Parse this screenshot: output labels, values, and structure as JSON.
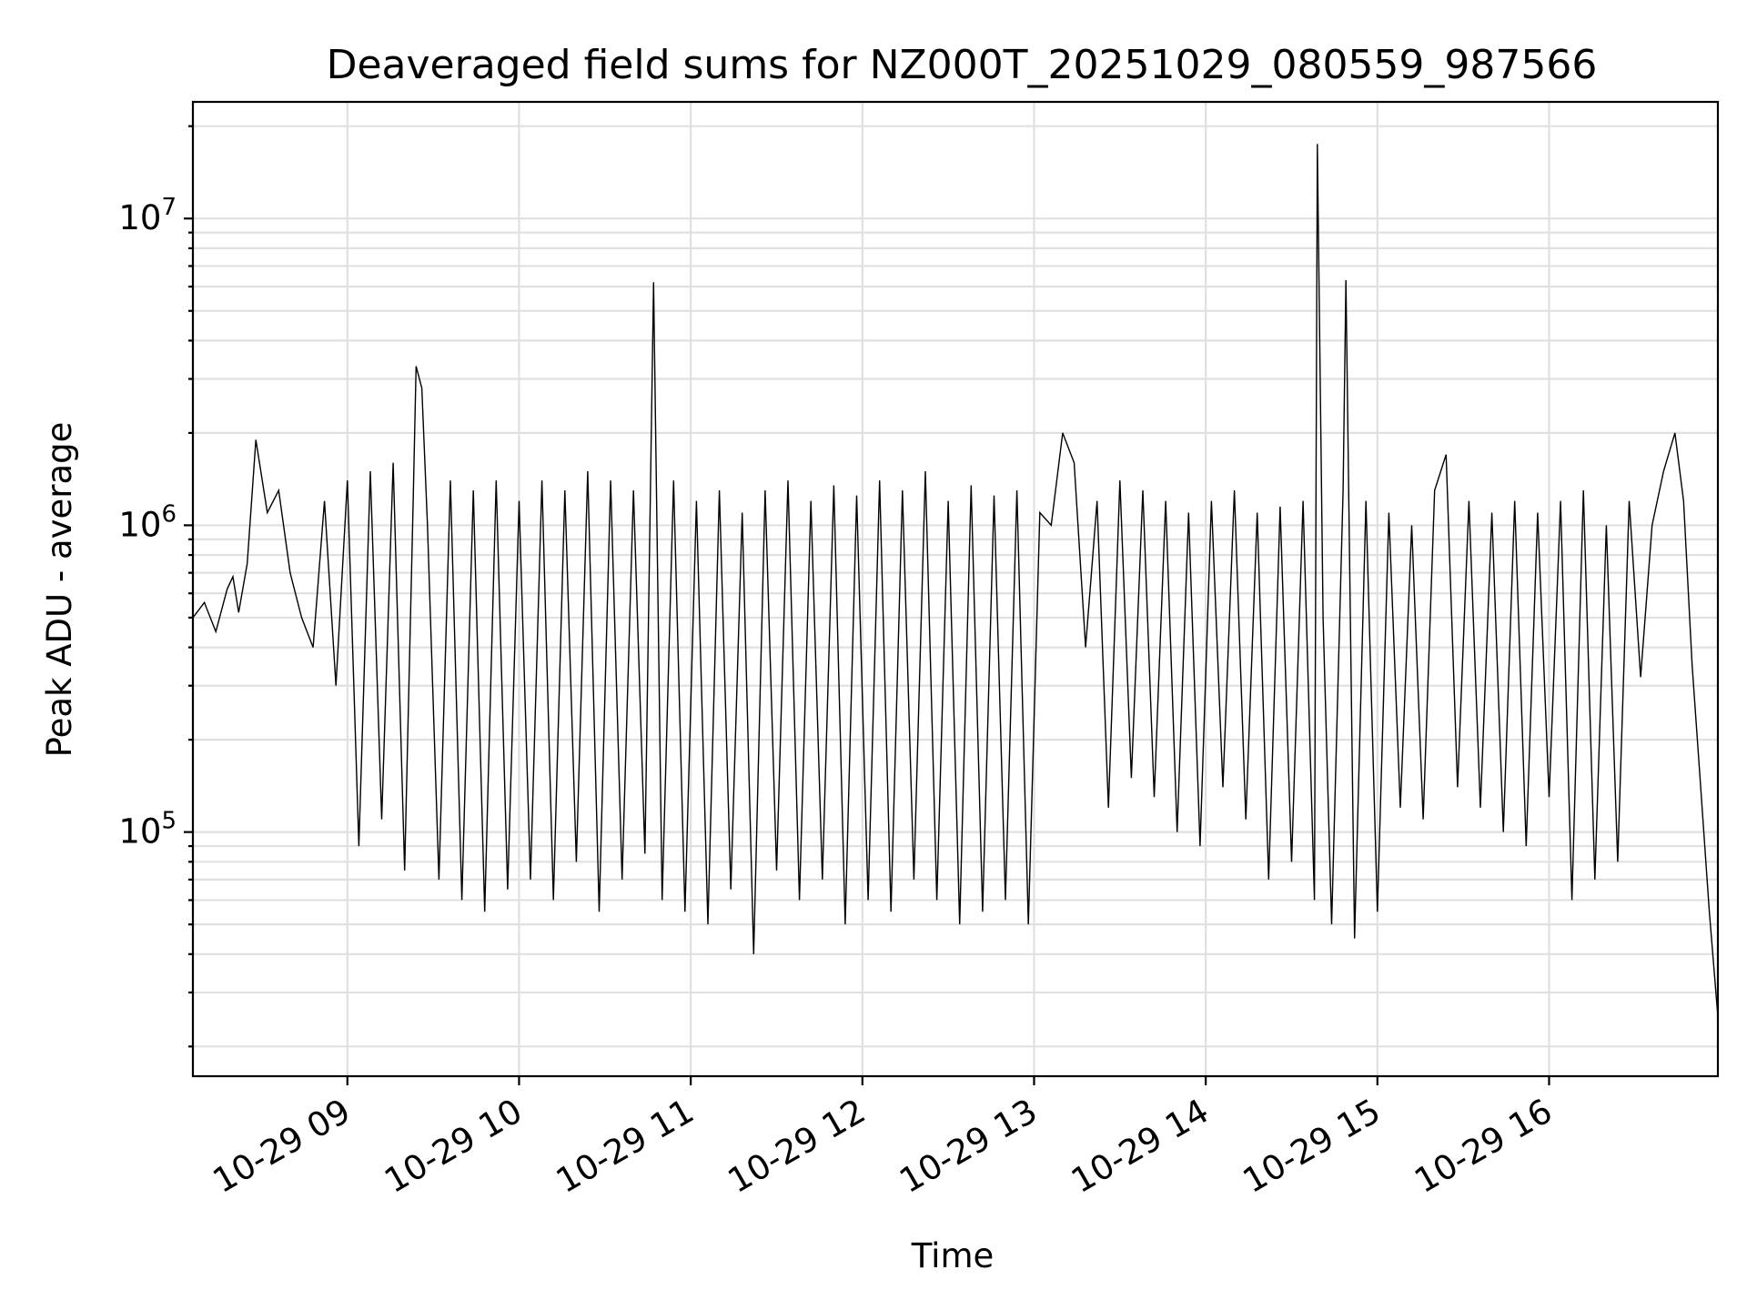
{
  "chart_data": {
    "type": "line",
    "title": "Deaveraged field sums for NZ000T_20251029_080559_987566",
    "xlabel": "Time",
    "ylabel": "Peak ADU - average",
    "yscale": "log",
    "xlim": [
      "2025-10-29 08:06",
      "2025-10-29 16:59"
    ],
    "ylim": [
      16000,
      24000000
    ],
    "grid": true,
    "x_ticks": [
      {
        "value": "2025-10-29 09:00",
        "label": "10-29 09"
      },
      {
        "value": "2025-10-29 10:00",
        "label": "10-29 10"
      },
      {
        "value": "2025-10-29 11:00",
        "label": "10-29 11"
      },
      {
        "value": "2025-10-29 12:00",
        "label": "10-29 12"
      },
      {
        "value": "2025-10-29 13:00",
        "label": "10-29 13"
      },
      {
        "value": "2025-10-29 14:00",
        "label": "10-29 14"
      },
      {
        "value": "2025-10-29 15:00",
        "label": "10-29 15"
      },
      {
        "value": "2025-10-29 16:00",
        "label": "10-29 16"
      }
    ],
    "y_ticks": [
      {
        "value": 100000,
        "base": "10",
        "exp": "5"
      },
      {
        "value": 1000000,
        "base": "10",
        "exp": "6"
      },
      {
        "value": 10000000,
        "base": "10",
        "exp": "7"
      }
    ],
    "series": [
      {
        "color": "#000000",
        "x": [
          "2025-10-29 08:06",
          "2025-10-29 08:10",
          "2025-10-29 08:14",
          "2025-10-29 08:18",
          "2025-10-29 08:20",
          "2025-10-29 08:22",
          "2025-10-29 08:25",
          "2025-10-29 08:28",
          "2025-10-29 08:32",
          "2025-10-29 08:36",
          "2025-10-29 08:40",
          "2025-10-29 08:44",
          "2025-10-29 08:48",
          "2025-10-29 08:52",
          "2025-10-29 08:56",
          "2025-10-29 09:00",
          "2025-10-29 09:04",
          "2025-10-29 09:08",
          "2025-10-29 09:12",
          "2025-10-29 09:16",
          "2025-10-29 09:20",
          "2025-10-29 09:23",
          "2025-10-29 09:24",
          "2025-10-29 09:26",
          "2025-10-29 09:28",
          "2025-10-29 09:32",
          "2025-10-29 09:36",
          "2025-10-29 09:40",
          "2025-10-29 09:44",
          "2025-10-29 09:48",
          "2025-10-29 09:52",
          "2025-10-29 09:56",
          "2025-10-29 10:00",
          "2025-10-29 10:04",
          "2025-10-29 10:08",
          "2025-10-29 10:12",
          "2025-10-29 10:16",
          "2025-10-29 10:20",
          "2025-10-29 10:24",
          "2025-10-29 10:28",
          "2025-10-29 10:32",
          "2025-10-29 10:36",
          "2025-10-29 10:40",
          "2025-10-29 10:44",
          "2025-10-29 10:47",
          "2025-10-29 10:50",
          "2025-10-29 10:54",
          "2025-10-29 10:58",
          "2025-10-29 11:02",
          "2025-10-29 11:06",
          "2025-10-29 11:10",
          "2025-10-29 11:14",
          "2025-10-29 11:18",
          "2025-10-29 11:22",
          "2025-10-29 11:26",
          "2025-10-29 11:30",
          "2025-10-29 11:34",
          "2025-10-29 11:38",
          "2025-10-29 11:42",
          "2025-10-29 11:46",
          "2025-10-29 11:50",
          "2025-10-29 11:54",
          "2025-10-29 11:58",
          "2025-10-29 12:02",
          "2025-10-29 12:06",
          "2025-10-29 12:10",
          "2025-10-29 12:14",
          "2025-10-29 12:18",
          "2025-10-29 12:22",
          "2025-10-29 12:26",
          "2025-10-29 12:30",
          "2025-10-29 12:34",
          "2025-10-29 12:38",
          "2025-10-29 12:42",
          "2025-10-29 12:46",
          "2025-10-29 12:50",
          "2025-10-29 12:54",
          "2025-10-29 12:58",
          "2025-10-29 13:02",
          "2025-10-29 13:06",
          "2025-10-29 13:10",
          "2025-10-29 13:14",
          "2025-10-29 13:18",
          "2025-10-29 13:22",
          "2025-10-29 13:26",
          "2025-10-29 13:30",
          "2025-10-29 13:34",
          "2025-10-29 13:38",
          "2025-10-29 13:42",
          "2025-10-29 13:46",
          "2025-10-29 13:50",
          "2025-10-29 13:54",
          "2025-10-29 13:58",
          "2025-10-29 14:02",
          "2025-10-29 14:06",
          "2025-10-29 14:10",
          "2025-10-29 14:14",
          "2025-10-29 14:18",
          "2025-10-29 14:22",
          "2025-10-29 14:26",
          "2025-10-29 14:30",
          "2025-10-29 14:34",
          "2025-10-29 14:38",
          "2025-10-29 14:39",
          "2025-10-29 14:41",
          "2025-10-29 14:44",
          "2025-10-29 14:48",
          "2025-10-29 14:49",
          "2025-10-29 14:52",
          "2025-10-29 14:56",
          "2025-10-29 15:00",
          "2025-10-29 15:04",
          "2025-10-29 15:08",
          "2025-10-29 15:12",
          "2025-10-29 15:16",
          "2025-10-29 15:20",
          "2025-10-29 15:24",
          "2025-10-29 15:28",
          "2025-10-29 15:32",
          "2025-10-29 15:36",
          "2025-10-29 15:40",
          "2025-10-29 15:44",
          "2025-10-29 15:48",
          "2025-10-29 15:52",
          "2025-10-29 15:56",
          "2025-10-29 16:00",
          "2025-10-29 16:04",
          "2025-10-29 16:08",
          "2025-10-29 16:12",
          "2025-10-29 16:16",
          "2025-10-29 16:20",
          "2025-10-29 16:24",
          "2025-10-29 16:28",
          "2025-10-29 16:32",
          "2025-10-29 16:36",
          "2025-10-29 16:40",
          "2025-10-29 16:44",
          "2025-10-29 16:47",
          "2025-10-29 16:50",
          "2025-10-29 16:53",
          "2025-10-29 16:56",
          "2025-10-29 16:59"
        ],
        "y": [
          500000,
          560000,
          450000,
          620000,
          680000,
          520000,
          750000,
          1900000,
          1100000,
          1300000,
          700000,
          500000,
          400000,
          1200000,
          300000,
          1400000,
          90000,
          1500000,
          110000,
          1600000,
          75000,
          1200000,
          3300000,
          2800000,
          1000000,
          70000,
          1400000,
          60000,
          1300000,
          55000,
          1400000,
          65000,
          1200000,
          70000,
          1400000,
          60000,
          1300000,
          80000,
          1500000,
          55000,
          1400000,
          70000,
          1300000,
          85000,
          6200000,
          60000,
          1400000,
          55000,
          1200000,
          50000,
          1300000,
          65000,
          1100000,
          40000,
          1300000,
          75000,
          1400000,
          60000,
          1200000,
          70000,
          1350000,
          50000,
          1250000,
          60000,
          1400000,
          55000,
          1300000,
          70000,
          1500000,
          60000,
          1200000,
          50000,
          1350000,
          55000,
          1250000,
          60000,
          1300000,
          50000,
          1100000,
          1000000,
          2000000,
          1600000,
          400000,
          1200000,
          120000,
          1400000,
          150000,
          1300000,
          130000,
          1200000,
          100000,
          1100000,
          90000,
          1200000,
          140000,
          1300000,
          110000,
          1100000,
          70000,
          1150000,
          80000,
          1200000,
          60000,
          17500000,
          500000,
          50000,
          1300000,
          6300000,
          45000,
          1200000,
          55000,
          1100000,
          120000,
          1000000,
          110000,
          1300000,
          1700000,
          140000,
          1200000,
          120000,
          1100000,
          100000,
          1200000,
          90000,
          1100000,
          130000,
          1200000,
          60000,
          1300000,
          70000,
          1000000,
          80000,
          1200000,
          320000,
          1000000,
          1500000,
          2000000,
          1200000,
          350000,
          140000,
          55000,
          25000
        ]
      }
    ]
  }
}
